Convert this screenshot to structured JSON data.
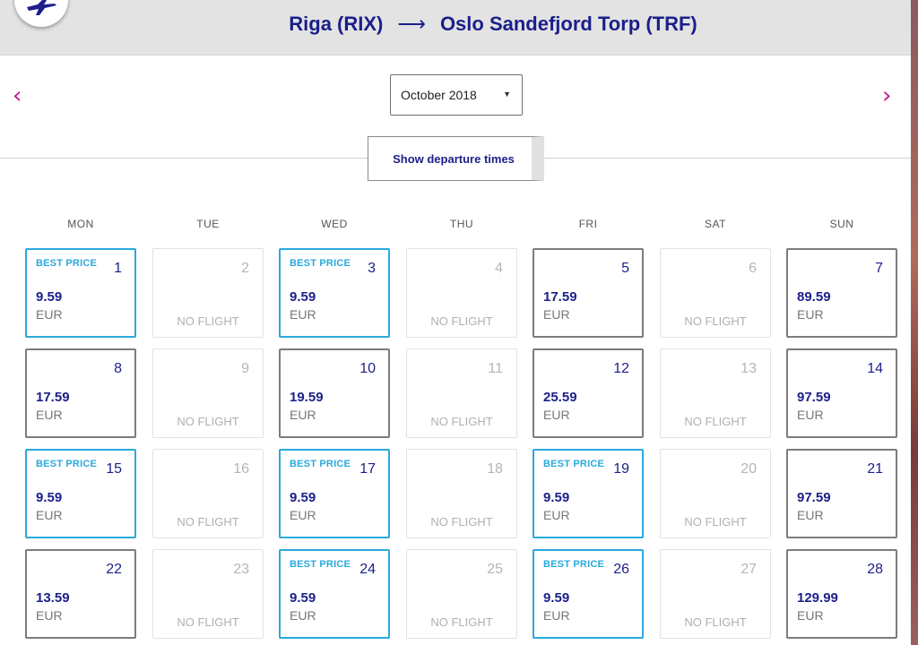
{
  "header": {
    "origin": "Riga (RIX)",
    "arrow": "⟶",
    "destination": "Oslo Sandefjord Torp (TRF)"
  },
  "nav": {
    "prev": "‹",
    "next": "›"
  },
  "month_select": {
    "value": "October 2018",
    "caret": "▼"
  },
  "departure_button": {
    "label": "Show departure times"
  },
  "weekdays": [
    "MON",
    "TUE",
    "WED",
    "THU",
    "FRI",
    "SAT",
    "SUN"
  ],
  "days": [
    {
      "day": "1",
      "status": "best",
      "price": "9.59",
      "currency": "EUR"
    },
    {
      "day": "2",
      "status": "noflight"
    },
    {
      "day": "3",
      "status": "best",
      "price": "9.59",
      "currency": "EUR"
    },
    {
      "day": "4",
      "status": "noflight"
    },
    {
      "day": "5",
      "status": "priced",
      "price": "17.59",
      "currency": "EUR"
    },
    {
      "day": "6",
      "status": "noflight"
    },
    {
      "day": "7",
      "status": "priced",
      "price": "89.59",
      "currency": "EUR"
    },
    {
      "day": "8",
      "status": "priced",
      "price": "17.59",
      "currency": "EUR"
    },
    {
      "day": "9",
      "status": "noflight"
    },
    {
      "day": "10",
      "status": "priced",
      "price": "19.59",
      "currency": "EUR"
    },
    {
      "day": "11",
      "status": "noflight"
    },
    {
      "day": "12",
      "status": "priced",
      "price": "25.59",
      "currency": "EUR"
    },
    {
      "day": "13",
      "status": "noflight"
    },
    {
      "day": "14",
      "status": "priced",
      "price": "97.59",
      "currency": "EUR"
    },
    {
      "day": "15",
      "status": "best",
      "price": "9.59",
      "currency": "EUR"
    },
    {
      "day": "16",
      "status": "noflight"
    },
    {
      "day": "17",
      "status": "best",
      "price": "9.59",
      "currency": "EUR"
    },
    {
      "day": "18",
      "status": "noflight"
    },
    {
      "day": "19",
      "status": "best",
      "price": "9.59",
      "currency": "EUR"
    },
    {
      "day": "20",
      "status": "noflight"
    },
    {
      "day": "21",
      "status": "priced",
      "price": "97.59",
      "currency": "EUR"
    },
    {
      "day": "22",
      "status": "priced",
      "price": "13.59",
      "currency": "EUR"
    },
    {
      "day": "23",
      "status": "noflight"
    },
    {
      "day": "24",
      "status": "best",
      "price": "9.59",
      "currency": "EUR"
    },
    {
      "day": "25",
      "status": "noflight"
    },
    {
      "day": "26",
      "status": "best",
      "price": "9.59",
      "currency": "EUR"
    },
    {
      "day": "27",
      "status": "noflight"
    },
    {
      "day": "28",
      "status": "priced",
      "price": "129.99",
      "currency": "EUR"
    }
  ],
  "labels": {
    "best_price": "BEST PRICE",
    "no_flight": "NO FLIGHT"
  },
  "colors": {
    "brand_navy": "#1b1f8a",
    "best_price_blue": "#2aa9dd",
    "nav_arrow_magenta": "#c9178a"
  }
}
